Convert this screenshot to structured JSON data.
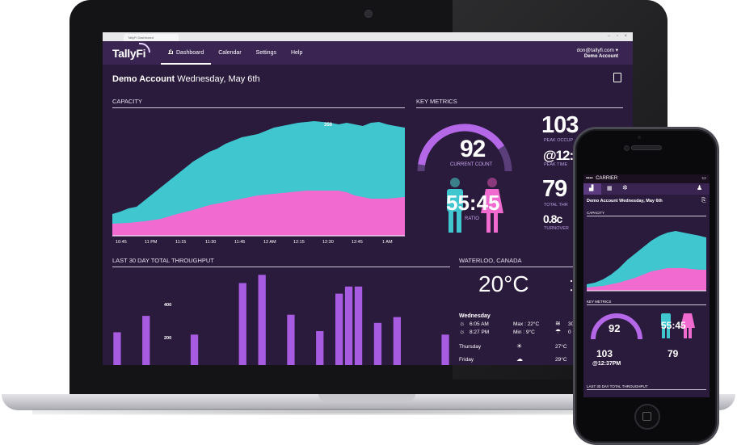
{
  "browser": {
    "tab_title": "TallyFi Dashboard"
  },
  "header": {
    "logo": "TallyFi",
    "nav": [
      {
        "label": "Dashboard",
        "active": true
      },
      {
        "label": "Calendar",
        "active": false
      },
      {
        "label": "Settings",
        "active": false
      },
      {
        "label": "Help",
        "active": false
      }
    ],
    "user_email": "don@tallyfi.com",
    "user_account": "Demo Account"
  },
  "title": {
    "account": "Demo Account",
    "date": "Wednesday, May 6th"
  },
  "capacity": {
    "heading": "CAPACITY",
    "peak_label": "350",
    "x_ticks": [
      "10:45",
      "11 PM",
      "11:15",
      "11:30",
      "11:45",
      "12 AM",
      "12:15",
      "12:30",
      "12:45",
      "1 AM"
    ]
  },
  "key_metrics": {
    "heading": "KEY METRICS",
    "current_count": "92",
    "current_count_label": "CURRENT COUNT",
    "gauge_fraction": 0.85,
    "ratio": "55:45",
    "ratio_label": "RATIO",
    "peak_occupancy": "103",
    "peak_occupancy_label": "PEAK OCCUP",
    "peak_time": "@12:37",
    "peak_time_label": "PEAK TIME",
    "total_throughput": "79",
    "total_throughput_label": "TOTAL THR",
    "turnover": "0.8c",
    "turnover_label": "TURNOVER"
  },
  "throughput": {
    "heading": "LAST 30 DAY TOTAL THROUGHPUT",
    "y_labels": [
      "400",
      "200"
    ]
  },
  "chart_data": {
    "type": "bar",
    "title": "LAST 30 DAY TOTAL THROUGHPUT",
    "values": [
      280,
      0,
      0,
      420,
      0,
      0,
      0,
      0,
      260,
      0,
      0,
      0,
      0,
      700,
      0,
      770,
      0,
      0,
      430,
      0,
      0,
      290,
      0,
      610,
      670,
      670,
      0,
      360,
      0,
      410,
      0,
      0,
      0,
      0,
      260
    ],
    "visible_labels": [
      "400",
      "200"
    ]
  },
  "weather": {
    "heading": "WATERLOO, CANADA",
    "temperature": "20°C",
    "today": "Wednesday",
    "sunrise": "6:05 AM",
    "sunset": "8:27 PM",
    "max": "Max : 22°C",
    "min": "Min : 9°C",
    "extra1": "30",
    "extra2": "0",
    "forecast": [
      {
        "day": "Thursday",
        "temp": "27°C",
        "icon": "sun-icon"
      },
      {
        "day": "Friday",
        "temp": "29°C",
        "icon": "partly-cloudy-icon"
      }
    ]
  },
  "phone": {
    "carrier": "CARRIER",
    "title": "Demo Account Wednesday, May 6th",
    "capacity_heading": "CAPACITY",
    "key_metrics_heading": "KEY METRICS",
    "current_count": "92",
    "ratio": "55:45",
    "peak": "103",
    "peak_time": "@12:37PM",
    "total": "79",
    "throughput_heading": "LAST 30 DAY TOTAL THROUGHPUT"
  }
}
